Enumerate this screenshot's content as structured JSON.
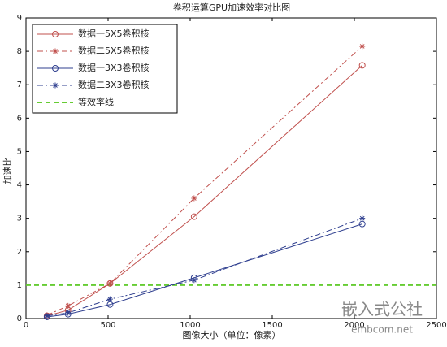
{
  "chart_data": {
    "type": "line",
    "title": "卷积运算GPU加速效率对比图",
    "xlabel": "图像大小（单位：像素）",
    "ylabel": "加速比",
    "x": [
      128,
      256,
      512,
      1024,
      2048
    ],
    "series": [
      {
        "name": "数据一5X5卷积核",
        "color": "#c0504d",
        "linestyle": "solid",
        "marker": "circle",
        "values": [
          0.08,
          0.25,
          1.05,
          3.05,
          7.58
        ]
      },
      {
        "name": "数据二5X5卷积核",
        "color": "#c0504d",
        "linestyle": "dashdot",
        "marker": "star",
        "values": [
          0.1,
          0.38,
          1.05,
          3.6,
          8.15
        ]
      },
      {
        "name": "数据一3X3卷积核",
        "color": "#2f3f8f",
        "linestyle": "solid",
        "marker": "circle",
        "values": [
          0.05,
          0.13,
          0.42,
          1.22,
          2.83
        ]
      },
      {
        "name": "数据二3X3卷积核",
        "color": "#2f3f8f",
        "linestyle": "dashdot",
        "marker": "star",
        "values": [
          0.08,
          0.17,
          0.58,
          1.15,
          3.0
        ]
      }
    ],
    "reference_line": {
      "name": "等效率线",
      "color": "#66cc33",
      "value": 1
    },
    "xlim": [
      0,
      2500
    ],
    "xticks": [
      0,
      500,
      1000,
      1500,
      2000,
      2500
    ],
    "ylim": [
      0,
      9
    ],
    "yticks": [
      0,
      1,
      2,
      3,
      4,
      5,
      6,
      7,
      8,
      9
    ],
    "legend": "upper left",
    "watermark": {
      "title": "嵌入式公社",
      "url": "embcom.net"
    }
  }
}
